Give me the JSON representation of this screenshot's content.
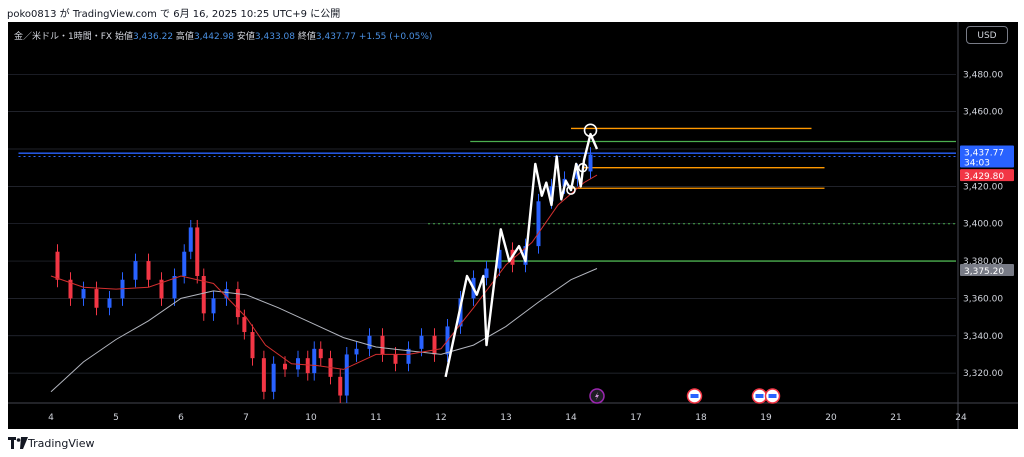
{
  "header": {
    "attribution": "poko0813 が TradingView.com で 6月 16, 2025 10:25 UTC+9 に公開"
  },
  "info": {
    "symbol": "金／米ドル・1時間・FX",
    "open_label": "始値",
    "open": "3,436.22",
    "high_label": "高値",
    "high": "3,442.98",
    "low_label": "安値",
    "low": "3,433.08",
    "close_label": "終値",
    "close": "3,437.77",
    "change": "+1.55 (+0.05%)"
  },
  "currency_button": "USD",
  "footer": {
    "brand": "TradingView"
  },
  "colors": {
    "background": "#000000",
    "up": "#2962ff",
    "down": "#f23645",
    "ma_red": "#d32f2f",
    "ma_white": "#b2b5be",
    "level_blue": "#2962ff",
    "level_green": "#4caf50",
    "level_orange": "#ff9800",
    "zigzag": "#ffffff",
    "grid": "#2a2e39"
  },
  "chart_data": {
    "type": "line",
    "title": "金／米ドル・1時間・FX",
    "x": [
      "4",
      "5",
      "6",
      "7",
      "10",
      "11",
      "12",
      "13",
      "14",
      "17",
      "18",
      "19",
      "20",
      "21",
      "24"
    ],
    "y_ticks": [
      "3,480.00",
      "3,460.00",
      "3,440.00",
      "3,420.00",
      "3,400.00",
      "3,380.00",
      "3,360.00",
      "3,340.00",
      "3,320.00"
    ],
    "y_tick_values": [
      3480,
      3460,
      3440,
      3420,
      3400,
      3380,
      3360,
      3340,
      3320
    ],
    "ylim": [
      3304,
      3508
    ],
    "price_series": {
      "name": "",
      "points": [
        [
          0.0,
          3385
        ],
        [
          0.2,
          3370
        ],
        [
          0.4,
          3360
        ],
        [
          0.6,
          3365
        ],
        [
          0.8,
          3355
        ],
        [
          1.0,
          3360
        ],
        [
          1.2,
          3370
        ],
        [
          1.4,
          3380
        ],
        [
          1.6,
          3370
        ],
        [
          1.8,
          3360
        ],
        [
          2.0,
          3372
        ],
        [
          2.1,
          3385
        ],
        [
          2.2,
          3398
        ],
        [
          2.3,
          3372
        ],
        [
          2.4,
          3352
        ],
        [
          2.6,
          3360
        ],
        [
          2.8,
          3365
        ],
        [
          2.95,
          3350
        ],
        [
          3.0,
          3342
        ],
        [
          3.2,
          3328
        ],
        [
          3.35,
          3310
        ],
        [
          3.5,
          3325
        ],
        [
          3.7,
          3322
        ],
        [
          3.9,
          3328
        ],
        [
          4.0,
          3320
        ],
        [
          4.1,
          3333
        ],
        [
          4.2,
          3328
        ],
        [
          4.4,
          3318
        ],
        [
          4.5,
          3308
        ],
        [
          4.6,
          3330
        ],
        [
          4.8,
          3333
        ],
        [
          5.0,
          3340
        ],
        [
          5.2,
          3330
        ],
        [
          5.4,
          3325
        ],
        [
          5.6,
          3333
        ],
        [
          5.8,
          3340
        ],
        [
          6.0,
          3330
        ],
        [
          6.2,
          3345
        ],
        [
          6.4,
          3360
        ],
        [
          6.6,
          3371
        ],
        [
          6.8,
          3376
        ],
        [
          7.0,
          3386
        ],
        [
          7.2,
          3378
        ],
        [
          7.4,
          3388
        ],
        [
          7.6,
          3412
        ],
        [
          7.8,
          3420
        ],
        [
          8.0,
          3424
        ],
        [
          8.2,
          3428
        ],
        [
          8.4,
          3437
        ]
      ]
    },
    "ma_red": {
      "name": "",
      "points": [
        [
          0.0,
          3372
        ],
        [
          0.5,
          3366
        ],
        [
          1.0,
          3365
        ],
        [
          1.5,
          3366
        ],
        [
          2.0,
          3372
        ],
        [
          2.5,
          3368
        ],
        [
          3.0,
          3350
        ],
        [
          3.3,
          3335
        ],
        [
          3.7,
          3325
        ],
        [
          4.1,
          3324
        ],
        [
          4.5,
          3322
        ],
        [
          5.0,
          3330
        ],
        [
          5.5,
          3330
        ],
        [
          6.0,
          3333
        ],
        [
          6.5,
          3355
        ],
        [
          7.0,
          3378
        ],
        [
          7.4,
          3390
        ],
        [
          7.8,
          3410
        ],
        [
          8.2,
          3422
        ],
        [
          8.4,
          3426
        ]
      ]
    },
    "ma_white": {
      "name": "",
      "points": [
        [
          0.0,
          3310
        ],
        [
          0.5,
          3326
        ],
        [
          1.0,
          3338
        ],
        [
          1.5,
          3348
        ],
        [
          2.0,
          3360
        ],
        [
          2.5,
          3364
        ],
        [
          3.0,
          3362
        ],
        [
          3.5,
          3355
        ],
        [
          4.0,
          3347
        ],
        [
          4.5,
          3339
        ],
        [
          5.0,
          3334
        ],
        [
          5.5,
          3332
        ],
        [
          6.0,
          3330
        ],
        [
          6.5,
          3335
        ],
        [
          7.0,
          3345
        ],
        [
          7.5,
          3358
        ],
        [
          8.0,
          3370
        ],
        [
          8.4,
          3376
        ]
      ]
    },
    "zigzag": {
      "name": "",
      "points": [
        [
          6.07,
          3318
        ],
        [
          6.4,
          3372
        ],
        [
          6.55,
          3362
        ],
        [
          6.65,
          3372
        ],
        [
          6.7,
          3335
        ],
        [
          6.92,
          3397
        ],
        [
          7.05,
          3380
        ],
        [
          7.2,
          3388
        ],
        [
          7.3,
          3380
        ],
        [
          7.45,
          3432
        ],
        [
          7.55,
          3415
        ],
        [
          7.62,
          3422
        ],
        [
          7.7,
          3410
        ],
        [
          7.78,
          3436
        ],
        [
          7.85,
          3413
        ],
        [
          7.92,
          3423
        ],
        [
          8.0,
          3418
        ],
        [
          8.08,
          3432
        ],
        [
          8.15,
          3420
        ],
        [
          8.2,
          3434
        ],
        [
          8.3,
          3448
        ],
        [
          8.4,
          3440
        ]
      ]
    },
    "circles": [
      [
        8.3,
        3450
      ],
      [
        8.18,
        3430
      ],
      [
        8.0,
        3418
      ]
    ],
    "levels": [
      {
        "price": 3444,
        "color": "green",
        "style": "solid",
        "from": 6.45,
        "to": 14.9
      },
      {
        "price": 3380,
        "color": "green",
        "style": "solid",
        "from": 6.2,
        "to": 14.9
      },
      {
        "price": 3400,
        "color": "green",
        "style": "dotted",
        "from": 5.8,
        "to": 14.9
      },
      {
        "price": 3437.77,
        "color": "blue",
        "style": "solid",
        "from": -0.5,
        "to": 14.9
      },
      {
        "price": 3436,
        "color": "blue",
        "style": "dotted",
        "from": -0.5,
        "to": 14.9
      },
      {
        "price": 3451,
        "color": "orange",
        "style": "solid",
        "from": 8.0,
        "to": 11.7
      },
      {
        "price": 3430,
        "color": "orange",
        "style": "solid",
        "from": 8.2,
        "to": 11.9
      },
      {
        "price": 3419,
        "color": "orange",
        "style": "solid",
        "from": 8.0,
        "to": 11.9
      }
    ],
    "price_labels": [
      {
        "text": "3,437.77",
        "sub": "34:03",
        "price": 3436,
        "color": "#2962ff"
      },
      {
        "text": "3,429.80",
        "sub": "",
        "price": 3426,
        "color": "#f23645"
      },
      {
        "text": "3,375.20",
        "sub": "",
        "price": 3375.2,
        "color": "#787b86"
      }
    ],
    "events": [
      {
        "kind": "bolt",
        "x": 8.4
      },
      {
        "kind": "flag",
        "x": 9.9
      },
      {
        "kind": "flag",
        "x": 10.9
      },
      {
        "kind": "flag",
        "x": 11.1
      }
    ],
    "last_price": 3437.77
  }
}
